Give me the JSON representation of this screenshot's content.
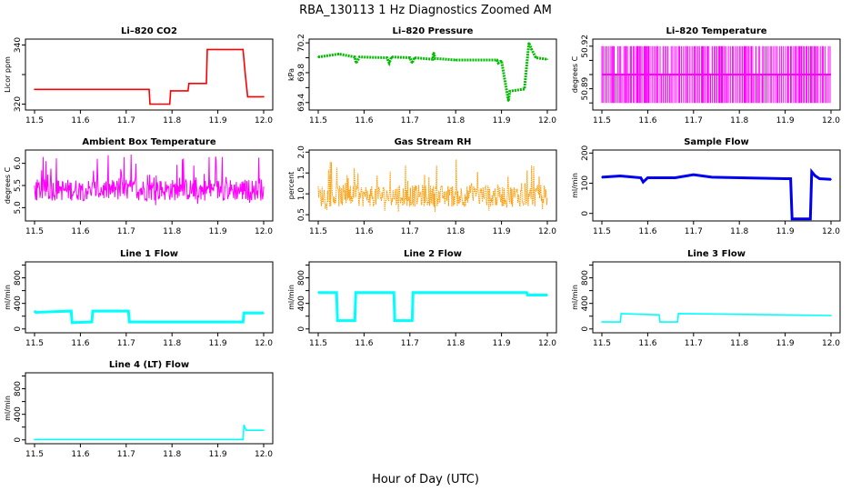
{
  "figure": {
    "title": "RBA_130113  1 Hz Diagnostics Zoomed AM",
    "xlabel": "Hour of Day (UTC)"
  },
  "chart_data": [
    {
      "type": "line",
      "title": "Li–820 CO2",
      "ylabel": "Licor ppm",
      "color": "#ff0000",
      "xlim": [
        11.5,
        12.0
      ],
      "ylim": [
        318,
        342
      ],
      "yticks": [
        "320",
        "340"
      ],
      "yticks_hidden": [
        "330"
      ],
      "xticks": [
        "11.5",
        "11.6",
        "11.7",
        "11.8",
        "11.9",
        "12.0"
      ],
      "series": [
        {
          "x": [
            11.5,
            11.75,
            11.752,
            11.795,
            11.797,
            11.835,
            11.837,
            11.875,
            11.877,
            11.955,
            11.96,
            11.965,
            12.0
          ],
          "y": [
            325,
            325,
            320,
            320,
            324.5,
            324.5,
            327,
            327,
            338.5,
            338.5,
            330,
            322.5,
            322.5
          ]
        }
      ]
    },
    {
      "type": "line",
      "title": "Li–820 Pressure",
      "ylabel": "kPa",
      "color": "#00bb00",
      "xlim": [
        11.5,
        12.0
      ],
      "ylim": [
        69.3,
        70.25
      ],
      "yticks": [
        "69.4",
        "69.8",
        "70.2"
      ],
      "yticks_hidden": [
        "69.6",
        "70.0"
      ],
      "xticks": [
        "11.5",
        "11.6",
        "11.7",
        "11.8",
        "11.9",
        "12.0"
      ],
      "series": [
        {
          "x": [
            11.5,
            11.545,
            11.58,
            11.583,
            11.59,
            11.65,
            11.655,
            11.66,
            11.7,
            11.705,
            11.71,
            11.75,
            11.752,
            11.755,
            11.8,
            11.89,
            11.893,
            11.9,
            11.915,
            11.918,
            11.925,
            11.95,
            11.96,
            11.965,
            11.975,
            12.0
          ],
          "y": [
            70.01,
            70.05,
            70.01,
            69.93,
            70.01,
            70.0,
            69.93,
            70.01,
            70.0,
            69.93,
            70.0,
            69.98,
            70.07,
            69.99,
            69.97,
            69.97,
            69.93,
            69.96,
            69.42,
            69.55,
            69.56,
            69.58,
            70.2,
            70.12,
            70.0,
            69.98
          ]
        }
      ]
    },
    {
      "type": "line",
      "title": "Li–820 Temperature",
      "ylabel": "degrees C",
      "color": "#ff00ff",
      "xlim": [
        11.5,
        12.0
      ],
      "ylim": [
        50.875,
        50.925
      ],
      "yticks": [
        "50.89",
        "50.92"
      ],
      "yticks_hidden": [
        "50.88",
        "50.90",
        "50.91"
      ],
      "xticks": [
        "11.5",
        "11.6",
        "11.7",
        "11.8",
        "11.9",
        "12.0"
      ],
      "series": [
        {
          "levels": [
            50.88,
            50.9,
            50.92
          ],
          "note_values": "toggles between 50.88 and 50.92 throughout"
        }
      ]
    },
    {
      "type": "line",
      "title": "Ambient Box Temperature",
      "ylabel": "degrees C",
      "color": "#ff00ff",
      "xlim": [
        11.5,
        12.0
      ],
      "ylim": [
        4.7,
        6.3
      ],
      "yticks": [
        "5.0",
        "5.5",
        "6.0"
      ],
      "yticks_hidden": [],
      "xticks": [
        "11.5",
        "11.6",
        "11.7",
        "11.8",
        "11.9",
        "12.0"
      ],
      "series": [
        {
          "mean": 5.4,
          "min": 4.8,
          "max": 6.2
        }
      ]
    },
    {
      "type": "line",
      "title": "Gas Stream RH",
      "ylabel": "percent",
      "color": "#ff9900",
      "xlim": [
        11.5,
        12.0
      ],
      "ylim": [
        0.35,
        2.05
      ],
      "yticks": [
        "0.5",
        "1.0",
        "1.5",
        "2.0"
      ],
      "yticks_hidden": [],
      "xticks": [
        "11.5",
        "11.6",
        "11.7",
        "11.8",
        "11.9",
        "12.0"
      ],
      "series": [
        {
          "mean": 0.95,
          "min": 0.45,
          "max": 1.95
        }
      ]
    },
    {
      "type": "line",
      "title": "Sample Flow",
      "ylabel": "ml/min",
      "color": "#0000ee",
      "xlim": [
        11.5,
        12.0
      ],
      "ylim": [
        -25,
        210
      ],
      "yticks": [
        "0",
        "100",
        "200"
      ],
      "yticks_hidden": [],
      "xticks": [
        "11.5",
        "11.6",
        "11.7",
        "11.8",
        "11.9",
        "12.0"
      ],
      "series": [
        {
          "x": [
            11.5,
            11.54,
            11.585,
            11.59,
            11.6,
            11.66,
            11.7,
            11.74,
            11.8,
            11.9,
            11.912,
            11.915,
            11.955,
            11.958,
            11.965,
            11.975,
            12.0
          ],
          "y": [
            120,
            124,
            118,
            104,
            118,
            118,
            128,
            120,
            118,
            115,
            115,
            -18,
            -18,
            138,
            125,
            115,
            113
          ]
        }
      ]
    },
    {
      "type": "line",
      "title": "Line 1 Flow",
      "ylabel": "ml/min",
      "color": "#00ffff",
      "xlim": [
        11.5,
        12.0
      ],
      "ylim": [
        -60,
        1050
      ],
      "yticks": [
        "0",
        "400",
        "800"
      ],
      "yticks_hidden": [
        "200",
        "600",
        "1000"
      ],
      "xticks": [
        "11.5",
        "11.6",
        "11.7",
        "11.8",
        "11.9",
        "12.0"
      ],
      "series": [
        {
          "x": [
            11.5,
            11.503,
            11.58,
            11.582,
            11.625,
            11.627,
            11.705,
            11.707,
            11.955,
            11.957,
            12.0
          ],
          "y": [
            280,
            260,
            280,
            100,
            110,
            280,
            280,
            110,
            110,
            250,
            250
          ]
        }
      ]
    },
    {
      "type": "line",
      "title": "Line 2 Flow",
      "ylabel": "ml/min",
      "color": "#00ffff",
      "xlim": [
        11.5,
        12.0
      ],
      "ylim": [
        -60,
        1050
      ],
      "yticks": [
        "0",
        "400",
        "800"
      ],
      "yticks_hidden": [
        "200",
        "600",
        "1000"
      ],
      "xticks": [
        "11.5",
        "11.6",
        "11.7",
        "11.8",
        "11.9",
        "12.0"
      ],
      "series": [
        {
          "x": [
            11.5,
            11.54,
            11.542,
            11.58,
            11.582,
            11.665,
            11.667,
            11.705,
            11.707,
            11.955,
            11.957,
            12.0
          ],
          "y": [
            570,
            570,
            130,
            130,
            570,
            570,
            130,
            130,
            570,
            570,
            530,
            530
          ]
        }
      ]
    },
    {
      "type": "line",
      "title": "Line 3 Flow",
      "ylabel": "ml/min",
      "color": "#00ffff",
      "xlim": [
        11.5,
        12.0
      ],
      "ylim": [
        -60,
        1050
      ],
      "yticks": [
        "0",
        "400",
        "800"
      ],
      "yticks_hidden": [
        "200",
        "600",
        "1000"
      ],
      "xticks": [
        "11.5",
        "11.6",
        "11.7",
        "11.8",
        "11.9",
        "12.0"
      ],
      "series": [
        {
          "x": [
            11.5,
            11.54,
            11.542,
            11.625,
            11.627,
            11.665,
            11.667,
            12.0
          ],
          "y": [
            110,
            110,
            240,
            220,
            110,
            110,
            240,
            210
          ]
        }
      ]
    },
    {
      "type": "line",
      "title": "Line 4 (LT) Flow",
      "ylabel": "ml/min",
      "color": "#00ffff",
      "xlim": [
        11.5,
        12.0
      ],
      "ylim": [
        -60,
        1050
      ],
      "yticks": [
        "0",
        "400",
        "800"
      ],
      "yticks_hidden": [
        "200",
        "600",
        "1000"
      ],
      "xticks": [
        "11.5",
        "11.6",
        "11.7",
        "11.8",
        "11.9",
        "12.0"
      ],
      "series": [
        {
          "x": [
            11.5,
            11.955,
            11.957,
            11.962,
            12.0
          ],
          "y": [
            5,
            5,
            230,
            150,
            150
          ]
        }
      ]
    }
  ]
}
